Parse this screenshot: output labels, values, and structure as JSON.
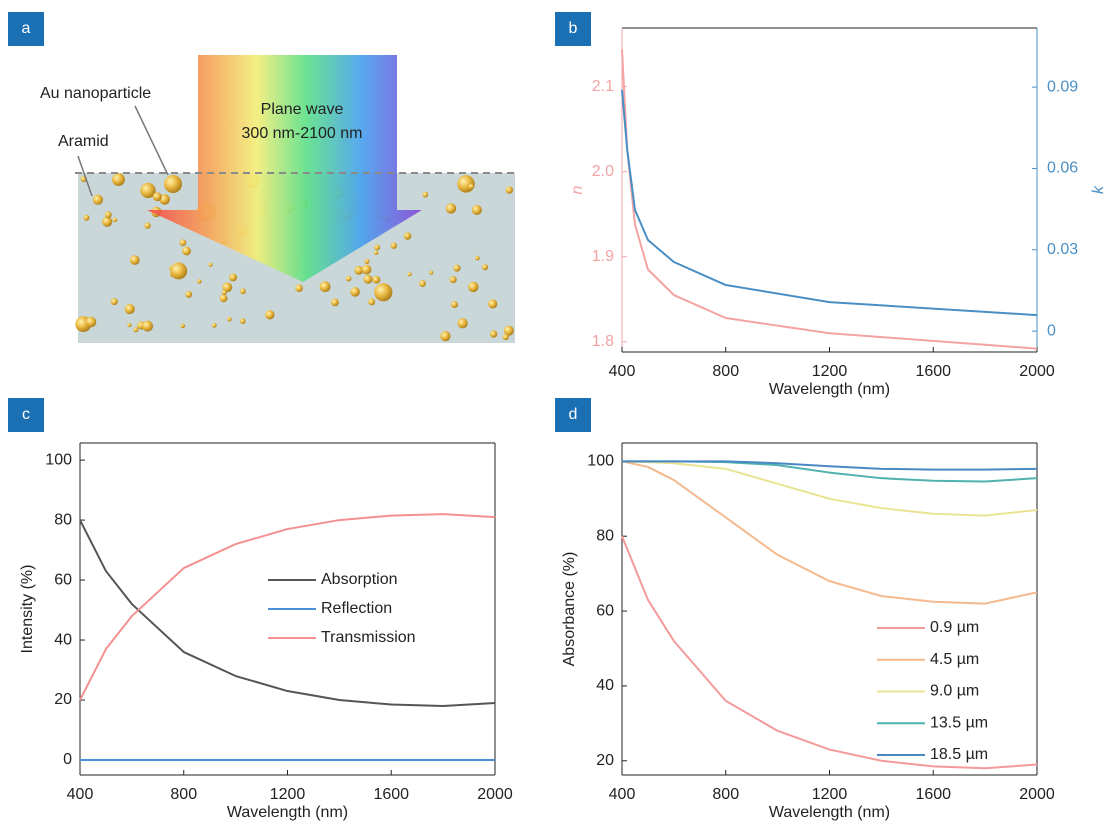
{
  "diagram": {
    "panel_label": "a",
    "arrow_text": [
      "Plane wave",
      "300 nm-2100 nm"
    ],
    "particle_label": "Au nanoparticle",
    "matrix_label": "Aramid"
  },
  "chart_data": [
    {
      "type": "line",
      "panel_label": "b",
      "xlabel": "Wavelength (nm)",
      "ylabel": "n",
      "y2label": "k",
      "x": [
        400,
        420,
        450,
        500,
        600,
        800,
        1200,
        2000
      ],
      "xlim": [
        400,
        2000
      ],
      "xticks": [
        400,
        800,
        1200,
        1600,
        2000
      ],
      "ylim": [
        1.788,
        2.169
      ],
      "yticks": [
        1.8,
        1.9,
        {
          "value": 2,
          "label": "2.0"
        },
        2.1
      ],
      "y2lim": [
        -0.0077,
        0.1118
      ],
      "y2ticks": [
        0,
        0.03,
        0.06,
        0.09
      ],
      "series": [
        {
          "name": "n",
          "color": "#f4a3a3",
          "values": [
            2.144,
            2.026,
            1.938,
            1.885,
            1.855,
            1.828,
            1.81,
            1.792
          ]
        },
        {
          "name": "k",
          "color": "#4a8fc4",
          "axis": "y2",
          "values": [
            0.089,
            0.067,
            0.0447,
            0.0336,
            0.0255,
            0.017,
            0.0107,
            0.0059
          ]
        }
      ]
    },
    {
      "type": "line",
      "panel_label": "c",
      "xlabel": "Wavelength (nm)",
      "ylabel": "Intensity (%)",
      "legend": "center",
      "x": [
        400,
        500,
        600,
        800,
        1000,
        1200,
        1400,
        1600,
        1800,
        2000
      ],
      "xlim": [
        400,
        2000
      ],
      "xticks": [
        400,
        800,
        1200,
        1600,
        2000
      ],
      "ylim": [
        -5,
        105.7
      ],
      "yticks": [
        0,
        20,
        40,
        60,
        80,
        100
      ],
      "series": [
        {
          "name": "Absorption",
          "color": "#555555",
          "values": [
            80,
            63,
            52,
            36,
            28,
            23,
            20,
            18.5,
            18,
            19
          ]
        },
        {
          "name": "Reflection",
          "color": "#4a90d9",
          "values": [
            0,
            0,
            0,
            0,
            0,
            0,
            0,
            0,
            0,
            0
          ]
        },
        {
          "name": "Transmission",
          "color": "#f49090",
          "values": [
            20,
            37,
            48,
            64,
            72,
            77,
            80,
            81.5,
            82,
            81
          ]
        }
      ]
    },
    {
      "type": "line",
      "panel_label": "d",
      "xlabel": "Wavelength (nm)",
      "ylabel": "Absorbance (%)",
      "legend": "lower right",
      "x": [
        400,
        500,
        600,
        800,
        1000,
        1200,
        1400,
        1600,
        1800,
        2000
      ],
      "xlim": [
        400,
        2000
      ],
      "xticks": [
        400,
        800,
        1200,
        1600,
        2000
      ],
      "ylim": [
        16.2,
        104.9
      ],
      "yticks": [
        20,
        40,
        60,
        80,
        100
      ],
      "series": [
        {
          "name": "0.9 µm",
          "color": "#f49a9a",
          "values": [
            80,
            63,
            52,
            36,
            28,
            23,
            20,
            18.5,
            18,
            19
          ]
        },
        {
          "name": "4.5 µm",
          "color": "#f4b98c",
          "values": [
            100,
            98.5,
            95,
            85,
            75,
            68,
            64,
            62.5,
            62,
            65
          ]
        },
        {
          "name": "9.0 µm",
          "color": "#ebe394",
          "values": [
            100,
            99.8,
            99.5,
            98,
            94,
            90,
            87.5,
            86,
            85.5,
            87
          ]
        },
        {
          "name": "13.5 µm",
          "color": "#4fb2b0",
          "values": [
            100,
            100,
            100,
            99.8,
            99,
            97,
            95.5,
            94.8,
            94.6,
            95.5
          ]
        },
        {
          "name": "18.5 µm",
          "color": "#4a88c4",
          "values": [
            100,
            100,
            100,
            100,
            99.5,
            98.7,
            98,
            97.8,
            97.8,
            98
          ]
        }
      ]
    }
  ]
}
